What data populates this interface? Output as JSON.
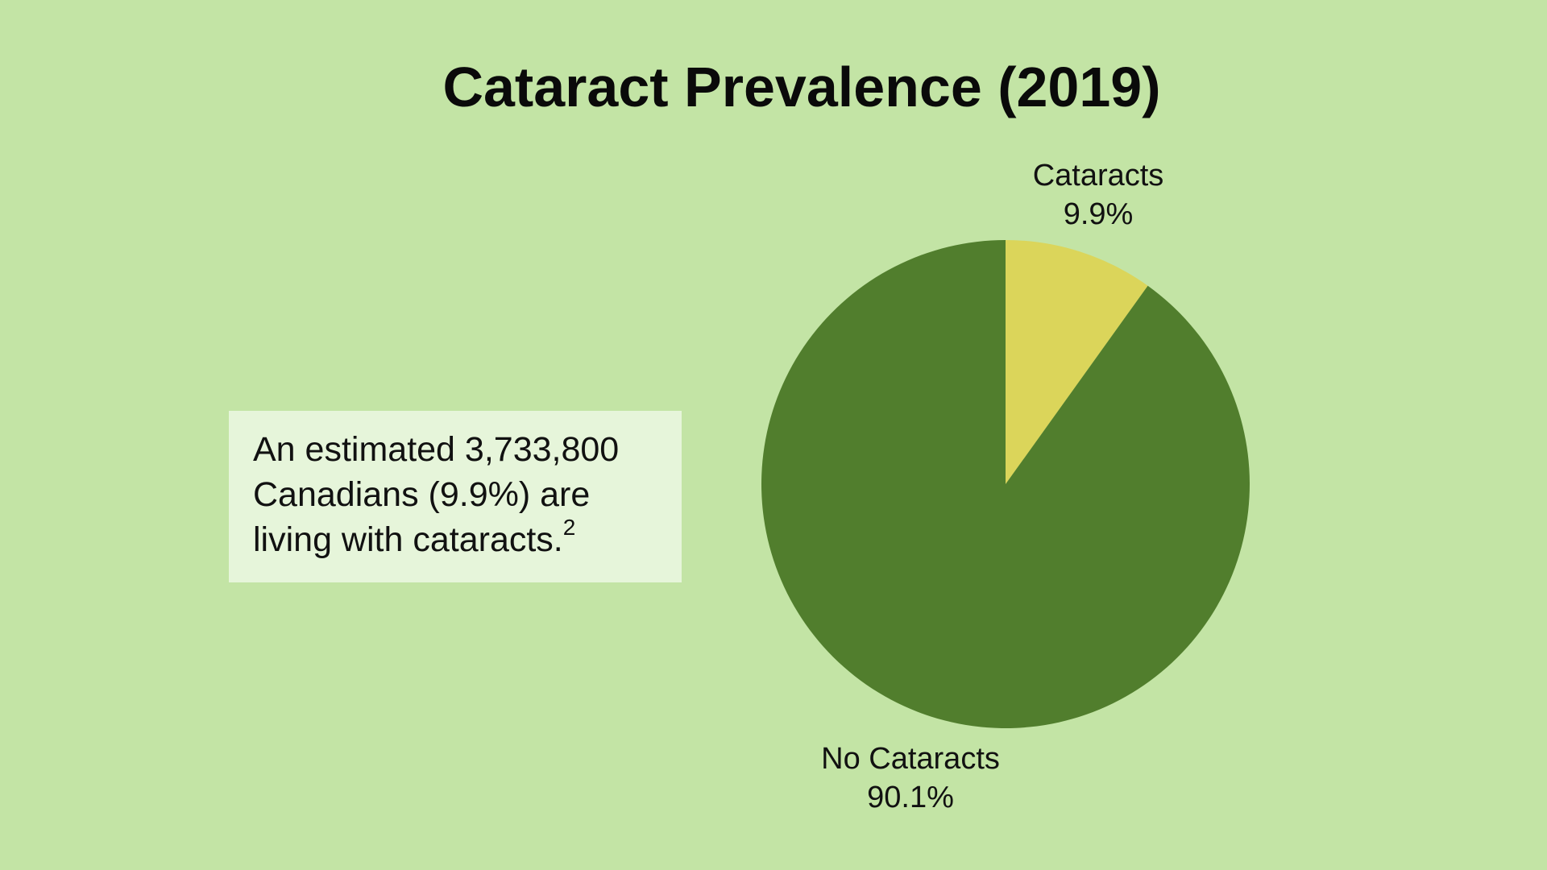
{
  "colors": {
    "background": "#c3e4a5",
    "callout_bg": "#e6f5da",
    "slice_cataracts": "#dbd55a",
    "slice_no_cataracts": "#517e2d"
  },
  "callout": {
    "text": "An estimated 3,733,800 Canadians (9.9%) are living with cataracts.",
    "footnote": "2"
  },
  "chart_data": {
    "type": "pie",
    "title": "Cataract Prevalence (2019)",
    "start_angle": "12 o'clock",
    "direction": "clockwise",
    "slices": [
      {
        "name": "Cataracts",
        "value": 9.9,
        "label": "9.9%",
        "color": "#dbd55a"
      },
      {
        "name": "No Cataracts",
        "value": 90.1,
        "label": "90.1%",
        "color": "#517e2d"
      }
    ]
  }
}
